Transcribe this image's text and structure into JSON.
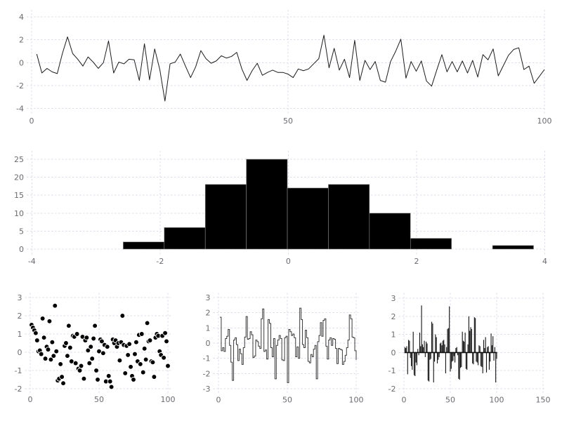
{
  "figure": {
    "background": "#ffffff",
    "grid_color": "#dcdde8",
    "label_color": "#6a6a70"
  },
  "chart_data": [
    {
      "id": "noise-line",
      "type": "line",
      "title": "",
      "xlabel": "",
      "ylabel": "",
      "grid": true,
      "legend": null,
      "line_color": "#1c1c1c",
      "x_ticks": [
        0,
        50,
        100
      ],
      "y_ticks": [
        -4,
        -2,
        0,
        2,
        4
      ],
      "xlim": [
        -0.96,
        100.07
      ],
      "ylim": [
        -4.51,
        4.61
      ],
      "x_start": 1,
      "x_step": 1,
      "y": [
        0.75,
        -0.9,
        -0.5,
        -0.8,
        -0.95,
        0.8,
        2.25,
        0.8,
        0.3,
        -0.3,
        0.5,
        0.05,
        -0.5,
        0.0,
        1.9,
        -0.9,
        0.05,
        -0.1,
        0.3,
        0.25,
        -1.55,
        1.65,
        -1.5,
        1.2,
        -0.6,
        -3.35,
        -0.1,
        0.05,
        0.75,
        -0.3,
        -1.3,
        -0.35,
        1.05,
        0.35,
        -0.05,
        0.15,
        0.6,
        0.4,
        0.55,
        0.9,
        -0.55,
        -1.55,
        -0.7,
        -0.05,
        -1.1,
        -0.85,
        -0.65,
        -0.85,
        -0.85,
        -1.0,
        -1.3,
        -0.55,
        -0.7,
        -0.55,
        -0.1,
        0.35,
        2.4,
        -0.45,
        1.25,
        -0.65,
        0.3,
        -1.3,
        1.95,
        -1.55,
        0.2,
        -0.6,
        0.1,
        -1.55,
        -1.7,
        0.1,
        1.0,
        2.05,
        -1.35,
        0.1,
        -0.75,
        0.15,
        -1.6,
        -2.05,
        -0.65,
        0.7,
        -0.8,
        0.1,
        -0.8,
        0.15,
        -0.9,
        0.2,
        -1.25,
        0.7,
        0.25,
        1.2,
        -1.15,
        -0.25,
        0.65,
        1.15,
        1.3,
        -0.6,
        -0.3,
        -1.8,
        -1.2,
        -0.6
      ]
    },
    {
      "id": "histogram",
      "type": "bar",
      "title": "",
      "xlabel": "",
      "ylabel": "",
      "grid": true,
      "legend": null,
      "bar_color": "#000000",
      "bar_edge_color": "#8a8a8a",
      "x_ticks": [
        -4,
        -2,
        0,
        2,
        4
      ],
      "y_ticks": [
        0,
        5,
        10,
        15,
        20,
        25
      ],
      "xlim": [
        -4.08,
        4.0
      ],
      "ylim": [
        -1.56,
        27.34
      ],
      "bin_edges": [
        -2.575,
        -1.935,
        -1.295,
        -0.655,
        -0.015,
        0.625,
        1.265,
        1.905,
        2.545,
        3.185,
        3.825
      ],
      "counts": [
        2,
        6,
        18,
        25,
        17,
        18,
        10,
        3,
        0,
        1
      ]
    },
    {
      "id": "scatter",
      "type": "scatter",
      "title": "",
      "xlabel": "",
      "ylabel": "",
      "grid": true,
      "legend": null,
      "dot_color": "#000000",
      "dot_edge_color": "#ffffff",
      "x_ticks": [
        0,
        50,
        100
      ],
      "y_ticks": [
        -2,
        -1,
        0,
        1,
        2,
        3
      ],
      "xlim": [
        -3.83,
        103.32
      ],
      "ylim": [
        -2.23,
        3.25
      ],
      "x_start": 1,
      "x_step": 1,
      "y": [
        1.5,
        1.35,
        1.2,
        1.05,
        0.65,
        0.05,
        0.1,
        -0.1,
        1.85,
        0.8,
        -0.35,
        0.3,
        0.15,
        1.7,
        -0.4,
        0.55,
        -0.2,
        2.55,
        0.05,
        -1.55,
        -1.45,
        -0.65,
        -1.35,
        -1.7,
        0.35,
        0.5,
        -0.2,
        1.45,
        0.25,
        -0.5,
        0.9,
        0.85,
        -0.6,
        1.0,
        -0.9,
        -1.0,
        -0.75,
        0.85,
        -1.45,
        0.65,
        0.8,
        0.1,
        -0.6,
        0.3,
        -0.35,
        0.75,
        1.45,
        -1.0,
        -1.5,
        0.05,
        0.7,
        0.6,
        -0.05,
        0.4,
        -1.6,
        0.3,
        -1.3,
        -1.6,
        -1.9,
        0.7,
        0.5,
        0.65,
        0.3,
        0.5,
        -0.45,
        0.55,
        2.0,
        0.4,
        -1.15,
        0.35,
        -0.15,
        0.45,
        -0.8,
        -1.3,
        -1.5,
        -0.1,
        0.55,
        -0.5,
        0.95,
        -0.65,
        1.0,
        -1.1,
        0.2,
        -0.4,
        1.6,
        0.6,
        0.65,
        -0.5,
        -0.55,
        -1.35,
        0.8,
        1.0,
        0.9,
        0.05,
        -0.15,
        0.9,
        -0.3,
        1.05,
        0.6,
        -0.75
      ]
    },
    {
      "id": "step",
      "type": "line",
      "subtype": "step",
      "title": "",
      "xlabel": "",
      "ylabel": "",
      "grid": true,
      "legend": null,
      "line_color": "#3a3a3a",
      "x_ticks": [
        0,
        50,
        100
      ],
      "y_ticks": [
        -3,
        -2,
        -1,
        0,
        1,
        2,
        3
      ],
      "xlim": [
        -3.83,
        101.79
      ],
      "ylim": [
        -3.3,
        3.3
      ],
      "x_start": 1,
      "x_step": 1,
      "y": [
        1.7,
        -0.5,
        -0.3,
        -0.55,
        0.3,
        0.45,
        0.9,
        -0.15,
        -1.25,
        -2.45,
        0.2,
        0.35,
        -0.1,
        -1.15,
        -0.4,
        -0.7,
        -1.4,
        -0.3,
        0.4,
        1.75,
        0.25,
        0.3,
        0.75,
        0.55,
        -0.95,
        -0.85,
        0.2,
        0.1,
        -0.2,
        -0.35,
        1.6,
        2.25,
        -0.55,
        -0.45,
        -1.05,
        1.55,
        1.3,
        -0.3,
        -0.9,
        0.3,
        -2.35,
        -0.15,
        0.2,
        0.5,
        0.3,
        -1.1,
        -1.15,
        0.35,
        0.45,
        -2.6,
        0.9,
        0.75,
        0.5,
        0.6,
        0.35,
        -0.9,
        -0.25,
        -1.0,
        2.3,
        1.55,
        -0.1,
        -0.3,
        0.85,
        0.35,
        -1.2,
        -1.3,
        -0.75,
        -0.9,
        -0.4,
        -0.15,
        -2.35,
        0.1,
        0.5,
        1.35,
        0.45,
        1.5,
        1.6,
        -0.2,
        -1.05,
        0.2,
        0.35,
        -0.15,
        0.3,
        0.25,
        -0.35,
        -1.35,
        -0.35,
        -0.4,
        -0.45,
        -1.4,
        -1.2,
        -0.8,
        -0.3,
        0.2,
        1.85,
        1.6,
        0.4,
        0.35,
        -0.5,
        -1.1
      ]
    },
    {
      "id": "stem",
      "type": "bar",
      "subtype": "stem",
      "title": "",
      "xlabel": "",
      "ylabel": "",
      "grid": true,
      "legend": null,
      "bar_color": "#111111",
      "baseline_value": 0,
      "x_ticks": [
        0,
        50,
        100,
        150
      ],
      "y_ticks": [
        -2,
        -1,
        0,
        1,
        2,
        3
      ],
      "xlim": [
        -5.68,
        153.41
      ],
      "ylim": [
        -2.25,
        3.29
      ],
      "x_start": 1,
      "x_step": 1,
      "y": [
        0.3,
        0.25,
        0.35,
        -1.2,
        0.7,
        0.65,
        -0.3,
        -0.75,
        -0.95,
        1.15,
        -1.25,
        -1.3,
        -0.55,
        -0.7,
        0.2,
        -0.15,
        1.1,
        0.35,
        2.6,
        0.45,
        0.3,
        0.65,
        -0.25,
        0.6,
        0.5,
        -1.55,
        -1.6,
        -0.4,
        -0.35,
        1.7,
        1.6,
        -1.65,
        -0.5,
        1.0,
        0.85,
        -0.6,
        -0.4,
        -0.25,
        0.5,
        0.55,
        0.4,
        0.65,
        0.7,
        0.45,
        -1.15,
        0.3,
        1.3,
        1.35,
        2.55,
        -1.05,
        -0.9,
        -0.5,
        -0.45,
        -0.2,
        -0.55,
        0.25,
        0.3,
        -0.15,
        -1.45,
        -1.5,
        -0.85,
        -0.8,
        1.15,
        0.65,
        0.6,
        1.1,
        -0.9,
        -0.95,
        0.45,
        2.0,
        1.2,
        1.4,
        1.3,
        -0.6,
        -0.65,
        1.95,
        1.9,
        -0.5,
        -0.55,
        -0.7,
        0.4,
        0.35,
        -0.75,
        -0.8,
        -1.15,
        0.7,
        0.25,
        0.85,
        -1.1,
        0.3,
        0.35,
        -0.95,
        -0.5,
        1.05,
        0.4,
        0.9,
        -0.45,
        0.3,
        -1.65,
        -0.35
      ]
    }
  ]
}
